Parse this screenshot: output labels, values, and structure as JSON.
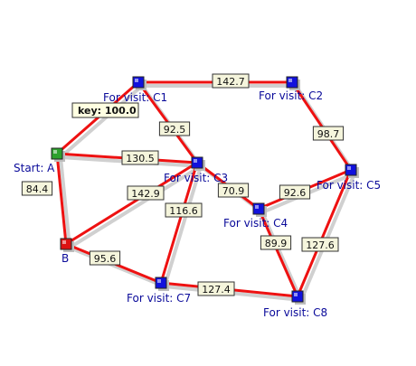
{
  "colors": {
    "edge": "#ee1111",
    "edge_shadow": "#d0d0d0",
    "label_bg": "#f5f5dc",
    "label_border": "#333333",
    "node_label": "#0a0a9a",
    "start": "#2ea12e",
    "origin": "#dd1111",
    "visit": "#1111dd",
    "tooltip_bg": "#ffffe1"
  },
  "tooltip": {
    "text": "key: 100.0"
  },
  "nodes": [
    {
      "id": "A",
      "label": "Start: A",
      "kind": "start"
    },
    {
      "id": "B",
      "label": "B",
      "kind": "origin"
    },
    {
      "id": "C1",
      "label": "For visit: C1",
      "kind": "visit"
    },
    {
      "id": "C2",
      "label": "For visit: C2",
      "kind": "visit"
    },
    {
      "id": "C3",
      "label": "For visit: C3",
      "kind": "visit"
    },
    {
      "id": "C4",
      "label": "For visit: C4",
      "kind": "visit"
    },
    {
      "id": "C5",
      "label": "For visit: C5",
      "kind": "visit"
    },
    {
      "id": "C7",
      "label": "For visit: C7",
      "kind": "visit"
    },
    {
      "id": "C8",
      "label": "For visit: C8",
      "kind": "visit"
    }
  ],
  "edges": [
    {
      "from": "C1",
      "to": "C2",
      "label": "142.7"
    },
    {
      "from": "A",
      "to": "C1",
      "label": ""
    },
    {
      "from": "C1",
      "to": "C3",
      "label": "92.5"
    },
    {
      "from": "A",
      "to": "C3",
      "label": "130.5"
    },
    {
      "from": "A",
      "to": "B",
      "label": "84.4"
    },
    {
      "from": "B",
      "to": "C3",
      "label": "142.9"
    },
    {
      "from": "C3",
      "to": "C7",
      "label": "116.6"
    },
    {
      "from": "C3",
      "to": "C4",
      "label": "70.9"
    },
    {
      "from": "B",
      "to": "C7",
      "label": "95.6"
    },
    {
      "from": "C2",
      "to": "C5",
      "label": "98.7"
    },
    {
      "from": "C4",
      "to": "C5",
      "label": "92.6"
    },
    {
      "from": "C4",
      "to": "C8",
      "label": "89.9"
    },
    {
      "from": "C5",
      "to": "C8",
      "label": "127.6"
    },
    {
      "from": "C7",
      "to": "C8",
      "label": "127.4"
    }
  ]
}
